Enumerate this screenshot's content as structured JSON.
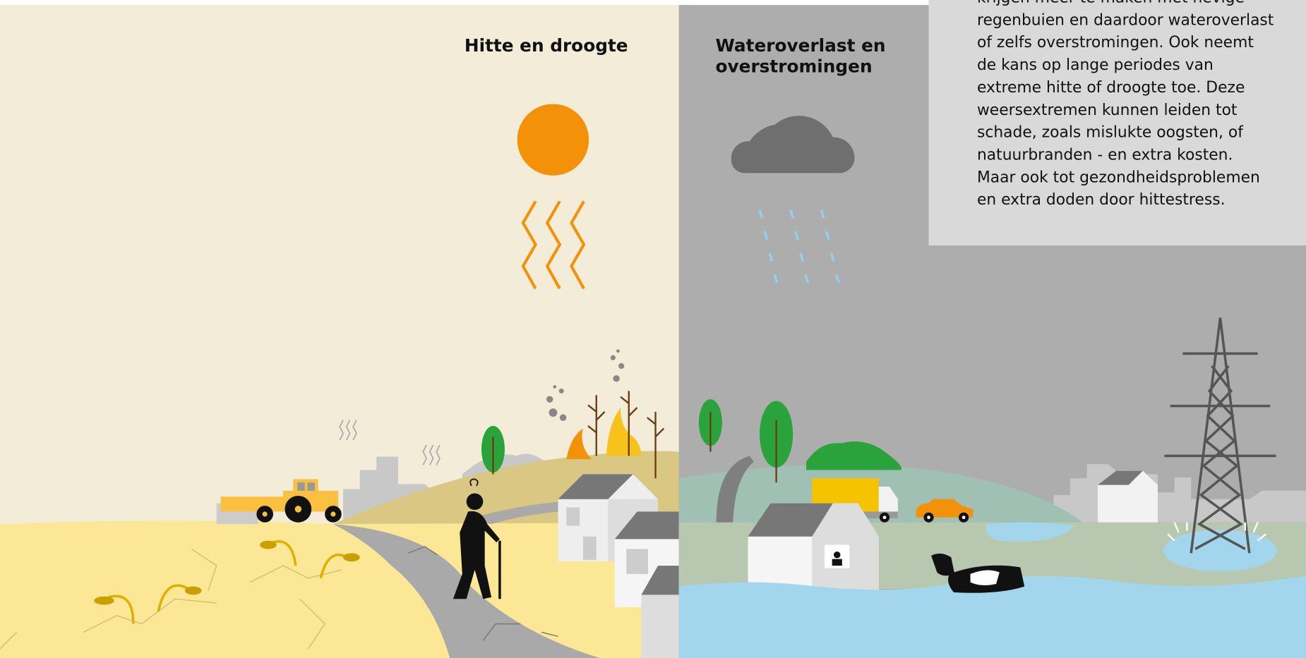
{
  "panels": [
    {
      "title": "Hitte en droogte"
    },
    {
      "title_lines": [
        "Wateroverlast en",
        "overstromingen"
      ]
    }
  ],
  "info_text": {
    "lines": [
      "krijgen meer te maken met hevige",
      "regenbuien en daardoor wateroverlast",
      "of zelfs overstromingen. Ook neemt",
      "de kans op lange periodes van",
      "extreme hitte of droogte toe. Deze",
      "weersextremen kunnen leiden tot",
      "schade, zoals mislukte oogsten, of",
      "natuurbranden - en extra kosten.",
      "Maar ook tot gezondheidsproblemen",
      "en extra doden door hittestress."
    ]
  }
}
